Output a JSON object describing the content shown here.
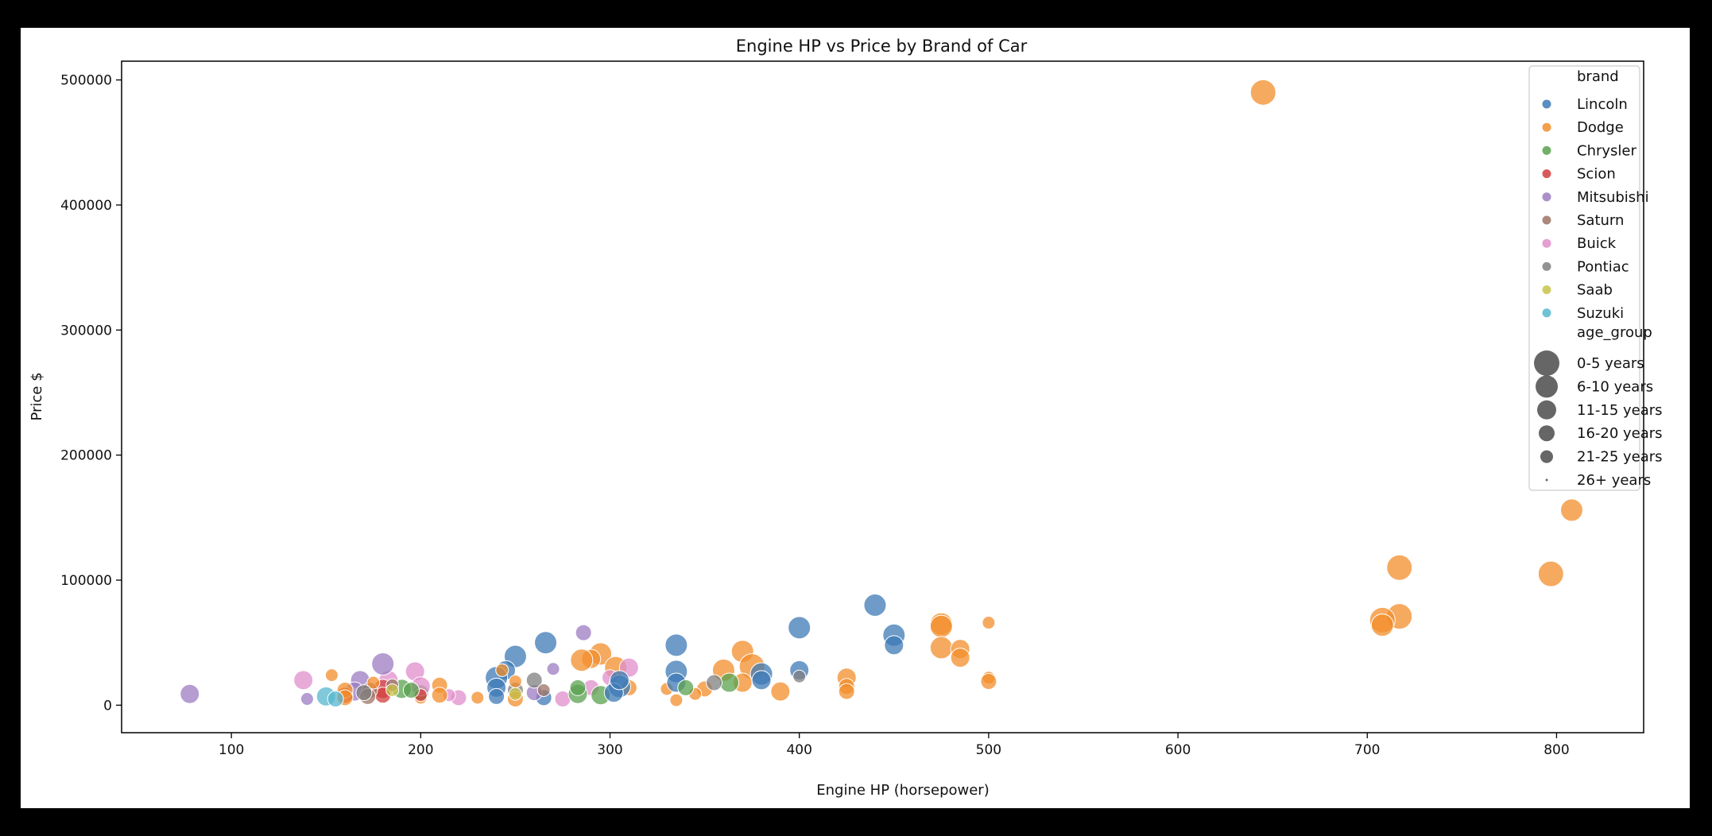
{
  "chart_data": {
    "type": "scatter",
    "title": "Engine HP vs Price by Brand of Car",
    "xlabel": "Engine HP (horsepower)",
    "ylabel": "Price $",
    "xlim": [
      42,
      846
    ],
    "ylim": [
      -22000,
      515000
    ],
    "xticks": [
      100,
      200,
      300,
      400,
      500,
      600,
      700,
      800
    ],
    "yticks": [
      0,
      100000,
      200000,
      300000,
      400000,
      500000
    ],
    "grid": false,
    "legend_position": "top-right",
    "legend": {
      "hue_title": "brand",
      "size_title": "age_group",
      "brands": [
        {
          "name": "Lincoln",
          "color": "#3d7ab5"
        },
        {
          "name": "Dodge",
          "color": "#f28e2b"
        },
        {
          "name": "Chrysler",
          "color": "#59a14f"
        },
        {
          "name": "Scion",
          "color": "#d13e3e"
        },
        {
          "name": "Mitsubishi",
          "color": "#9c7bc2"
        },
        {
          "name": "Saturn",
          "color": "#9c7365"
        },
        {
          "name": "Buick",
          "color": "#e08ecb"
        },
        {
          "name": "Pontiac",
          "color": "#7f7f7f"
        },
        {
          "name": "Saab",
          "color": "#c8c34a"
        },
        {
          "name": "Suzuki",
          "color": "#55b7cf"
        }
      ],
      "age_groups": [
        {
          "name": "0-5 years",
          "size": 6
        },
        {
          "name": "6-10 years",
          "size": 5
        },
        {
          "name": "11-15 years",
          "size": 4
        },
        {
          "name": "16-20 years",
          "size": 3
        },
        {
          "name": "21-25 years",
          "size": 2
        },
        {
          "name": "26+ years",
          "size": 0
        }
      ]
    },
    "points": [
      [
        "Dodge",
        645,
        490000,
        6
      ],
      [
        "Dodge",
        808,
        156000,
        5
      ],
      [
        "Dodge",
        717,
        110000,
        6
      ],
      [
        "Dodge",
        797,
        105000,
        6
      ],
      [
        "Dodge",
        717,
        71000,
        6
      ],
      [
        "Dodge",
        708,
        68000,
        6
      ],
      [
        "Dodge",
        708,
        64000,
        5
      ],
      [
        "Lincoln",
        440,
        80000,
        5
      ],
      [
        "Lincoln",
        400,
        62000,
        5
      ],
      [
        "Lincoln",
        450,
        56000,
        5
      ],
      [
        "Lincoln",
        450,
        48000,
        4
      ],
      [
        "Lincoln",
        400,
        28000,
        4
      ],
      [
        "Pontiac",
        400,
        23000,
        2
      ],
      [
        "Dodge",
        475,
        65000,
        5
      ],
      [
        "Dodge",
        475,
        63000,
        5
      ],
      [
        "Dodge",
        475,
        46000,
        5
      ],
      [
        "Dodge",
        485,
        45000,
        4
      ],
      [
        "Dodge",
        485,
        38000,
        4
      ],
      [
        "Dodge",
        500,
        66000,
        2
      ],
      [
        "Dodge",
        500,
        22000,
        2
      ],
      [
        "Dodge",
        500,
        19000,
        3
      ],
      [
        "Dodge",
        425,
        22000,
        4
      ],
      [
        "Dodge",
        425,
        15000,
        3
      ],
      [
        "Dodge",
        425,
        11000,
        3
      ],
      [
        "Dodge",
        390,
        11000,
        4
      ],
      [
        "Dodge",
        370,
        43000,
        5
      ],
      [
        "Dodge",
        375,
        31000,
        6
      ],
      [
        "Dodge",
        360,
        28000,
        5
      ],
      [
        "Dodge",
        370,
        18000,
        4
      ],
      [
        "Dodge",
        350,
        13000,
        3
      ],
      [
        "Dodge",
        345,
        9000,
        2
      ],
      [
        "Dodge",
        330,
        13000,
        2
      ],
      [
        "Dodge",
        335,
        4000,
        2
      ],
      [
        "Lincoln",
        380,
        25000,
        5
      ],
      [
        "Lincoln",
        380,
        20000,
        4
      ],
      [
        "Lincoln",
        335,
        48000,
        5
      ],
      [
        "Lincoln",
        335,
        27000,
        5
      ],
      [
        "Lincoln",
        335,
        18000,
        4
      ],
      [
        "Chrysler",
        363,
        18000,
        4
      ],
      [
        "Chrysler",
        340,
        14000,
        3
      ],
      [
        "Pontiac",
        355,
        18000,
        3
      ],
      [
        "Dodge",
        295,
        41000,
        5
      ],
      [
        "Dodge",
        290,
        37000,
        4
      ],
      [
        "Dodge",
        285,
        36000,
        5
      ],
      [
        "Dodge",
        303,
        30000,
        5
      ],
      [
        "Dodge",
        310,
        14000,
        3
      ],
      [
        "Mitsubishi",
        286,
        58000,
        3
      ],
      [
        "Buick",
        310,
        30000,
        4
      ],
      [
        "Buick",
        300,
        22000,
        3
      ],
      [
        "Buick",
        290,
        14000,
        3
      ],
      [
        "Buick",
        275,
        5000,
        3
      ],
      [
        "Chrysler",
        295,
        8000,
        4
      ],
      [
        "Chrysler",
        283,
        9000,
        4
      ],
      [
        "Chrysler",
        283,
        14000,
        3
      ],
      [
        "Lincoln",
        305,
        15000,
        5
      ],
      [
        "Lincoln",
        302,
        10000,
        4
      ],
      [
        "Lincoln",
        305,
        20000,
        4
      ],
      [
        "Lincoln",
        266,
        50000,
        5
      ],
      [
        "Lincoln",
        250,
        39000,
        5
      ],
      [
        "Lincoln",
        245,
        28000,
        4
      ],
      [
        "Lincoln",
        240,
        22000,
        5
      ],
      [
        "Lincoln",
        240,
        14000,
        4
      ],
      [
        "Lincoln",
        240,
        7000,
        3
      ],
      [
        "Lincoln",
        265,
        6000,
        3
      ],
      [
        "Mitsubishi",
        270,
        29000,
        2
      ],
      [
        "Mitsubishi",
        260,
        10000,
        3
      ],
      [
        "Pontiac",
        260,
        20000,
        3
      ],
      [
        "Pontiac",
        250,
        12000,
        3
      ],
      [
        "Dodge",
        250,
        19000,
        2
      ],
      [
        "Dodge",
        250,
        5000,
        3
      ],
      [
        "Dodge",
        243,
        28000,
        2
      ],
      [
        "Saab",
        250,
        9000,
        2
      ],
      [
        "Saturn",
        265,
        12000,
        2
      ],
      [
        "Buick",
        220,
        6000,
        3
      ],
      [
        "Buick",
        215,
        8000,
        2
      ],
      [
        "Dodge",
        230,
        6000,
        2
      ],
      [
        "Dodge",
        210,
        16000,
        3
      ],
      [
        "Dodge",
        210,
        8000,
        3
      ],
      [
        "Dodge",
        200,
        6000,
        2
      ],
      [
        "Chrysler",
        190,
        13000,
        4
      ],
      [
        "Chrysler",
        200,
        10000,
        3
      ],
      [
        "Buick",
        197,
        27000,
        4
      ],
      [
        "Buick",
        200,
        15000,
        4
      ],
      [
        "Buick",
        183,
        20000,
        4
      ],
      [
        "Buick",
        138,
        20000,
        4
      ],
      [
        "Mitsubishi",
        180,
        33000,
        5
      ],
      [
        "Mitsubishi",
        168,
        20000,
        4
      ],
      [
        "Mitsubishi",
        165,
        11000,
        4
      ],
      [
        "Mitsubishi",
        78,
        9000,
        4
      ],
      [
        "Mitsubishi",
        140,
        5000,
        2
      ],
      [
        "Scion",
        180,
        13000,
        4
      ],
      [
        "Scion",
        180,
        8000,
        3
      ],
      [
        "Scion",
        160,
        8000,
        3
      ],
      [
        "Scion",
        200,
        8000,
        2
      ],
      [
        "Saturn",
        173,
        12000,
        3
      ],
      [
        "Saturn",
        172,
        7000,
        3
      ],
      [
        "Saturn",
        185,
        16000,
        2
      ],
      [
        "Dodge",
        160,
        12000,
        3
      ],
      [
        "Dodge",
        160,
        6000,
        3
      ],
      [
        "Dodge",
        153,
        24000,
        2
      ],
      [
        "Dodge",
        175,
        18000,
        2
      ],
      [
        "Chrysler",
        195,
        12000,
        3
      ],
      [
        "Suzuki",
        150,
        7000,
        4
      ],
      [
        "Suzuki",
        155,
        5000,
        3
      ],
      [
        "Saab",
        185,
        12000,
        2
      ],
      [
        "Pontiac",
        170,
        10000,
        3
      ]
    ]
  }
}
